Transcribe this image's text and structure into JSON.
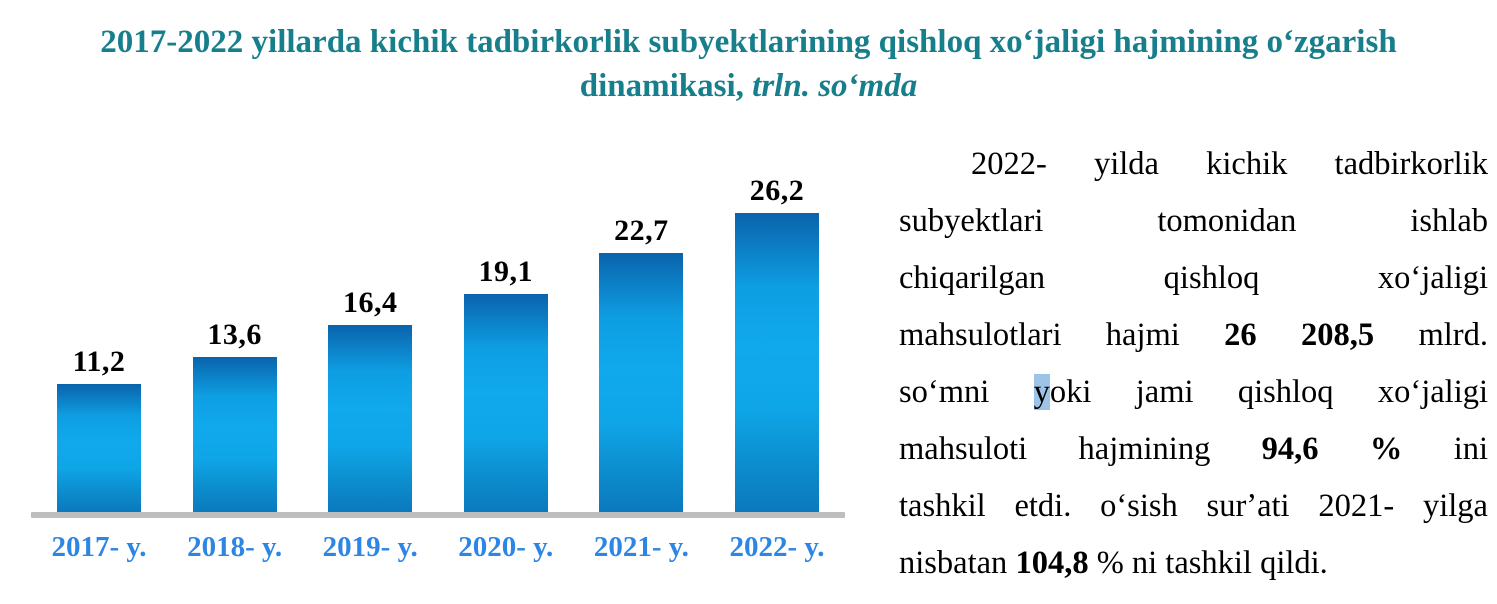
{
  "title": {
    "line1": "2017-2022 yillarda kichik tadbirkorlik subyektlarining qishloq xoʻjaligi hajmining oʻzgarish",
    "line2_prefix": "dinamikasi, ",
    "line2_italic": "trln. soʻmda",
    "color": "#177e8c"
  },
  "chart_data": {
    "type": "bar",
    "title": "2017-2022 yillarda kichik tadbirkorlik subyektlarining qishloq xoʻjaligi hajmining oʻzgarish dinamikasi, trln. soʻmda",
    "categories": [
      "2017- y.",
      "2018- y.",
      "2019- y.",
      "2020- y.",
      "2021- y.",
      "2022- y."
    ],
    "values": [
      11.2,
      13.6,
      16.4,
      19.1,
      22.7,
      26.2
    ],
    "value_labels": [
      "11,2",
      "13,6",
      "16,4",
      "19,1",
      "22,7",
      "26,2"
    ],
    "xlabel": "",
    "ylabel": "",
    "ylim": [
      0,
      28
    ],
    "grid": false,
    "legend": false,
    "bar_gradient": [
      "#0a63ac",
      "#0e9ee2",
      "#10a9ec",
      "#0fa6e8",
      "#0c8ccc",
      "#0b79be"
    ],
    "value_label_color": "#000000",
    "category_label_color": "#2e86e4",
    "axis_line_color": "#bdbdbd"
  },
  "paragraph": {
    "highlight_color": "#9dc3e6",
    "lines": [
      {
        "indent": true,
        "justify": true,
        "segments": [
          {
            "text": "2022- yilda kichik tadbirkorlik"
          }
        ]
      },
      {
        "indent": false,
        "justify": true,
        "segments": [
          {
            "text": "subyektlari tomonidan ishlab"
          }
        ]
      },
      {
        "indent": false,
        "justify": true,
        "segments": [
          {
            "text": "chiqarilgan qishloq xoʻjaligi"
          }
        ]
      },
      {
        "indent": false,
        "justify": true,
        "segments": [
          {
            "text": "mahsulotlari hajmi "
          },
          {
            "text": "26 208,5",
            "bold": true
          },
          {
            "text": " mlrd."
          }
        ]
      },
      {
        "indent": false,
        "justify": true,
        "segments": [
          {
            "text": "soʻmni "
          },
          {
            "text": "y",
            "highlight": true
          },
          {
            "text": "oki jami qishloq xoʻjaligi"
          }
        ]
      },
      {
        "indent": false,
        "justify": true,
        "segments": [
          {
            "text": "mahsuloti hajmining "
          },
          {
            "text": "94,6 %",
            "bold": true
          },
          {
            "text": " ini"
          }
        ]
      },
      {
        "indent": false,
        "justify": true,
        "segments": [
          {
            "text": "tashkil etdi. oʻsish surʼati 2021- yilga"
          }
        ]
      },
      {
        "indent": false,
        "justify": false,
        "segments": [
          {
            "text": "nisbatan "
          },
          {
            "text": "104,8",
            "bold": true
          },
          {
            "text": " % ni tashkil qildi."
          }
        ]
      }
    ]
  }
}
